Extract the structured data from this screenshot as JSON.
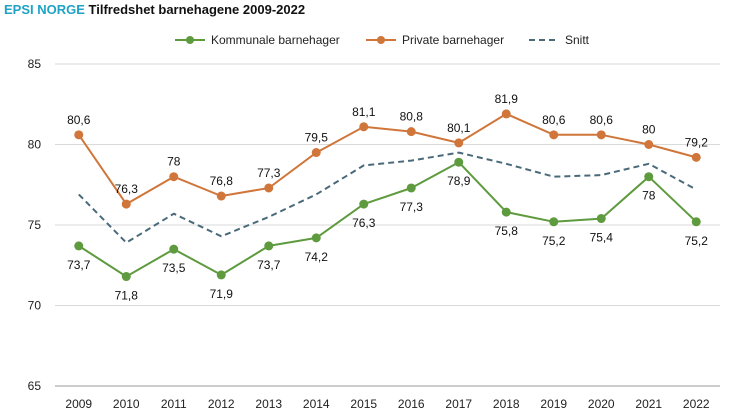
{
  "header": {
    "brand": "EPSI NORGE",
    "title": "Tilfredshet barnehagene 2009-2022"
  },
  "colors": {
    "kommunale": "#5e9a3e",
    "private": "#d0763a",
    "snitt": "#4a6a7a",
    "grid": "#d9d9d9",
    "axis": "#999999",
    "brand": "#1fa3c4"
  },
  "chart_data": {
    "type": "line",
    "title": "Tilfredshet barnehagene 2009-2022",
    "xlabel": "",
    "ylabel": "",
    "ylim": [
      65,
      85
    ],
    "yticks": [
      "65",
      "70",
      "75",
      "80",
      "85"
    ],
    "grid": true,
    "legend_position": "top-center",
    "x": [
      "2009",
      "2010",
      "2011",
      "2012",
      "2013",
      "2014",
      "2015",
      "2016",
      "2017",
      "2018",
      "2019",
      "2020",
      "2021",
      "2022"
    ],
    "series": [
      {
        "name": "Kommunale barnehager",
        "key": "kommunale",
        "style": "solid-marker",
        "label_position": "below",
        "values": [
          73.7,
          71.8,
          73.5,
          71.9,
          73.7,
          74.2,
          76.3,
          77.3,
          78.9,
          75.8,
          75.2,
          75.4,
          78,
          75.2
        ],
        "labels": [
          "73,7",
          "71,8",
          "73,5",
          "71,9",
          "73,7",
          "74,2",
          "76,3",
          "77,3",
          "78,9",
          "75,8",
          "75,2",
          "75,4",
          "78",
          "75,2"
        ]
      },
      {
        "name": "Private barnehager",
        "key": "private",
        "style": "solid-marker",
        "label_position": "above",
        "values": [
          80.6,
          76.3,
          78,
          76.8,
          77.3,
          79.5,
          81.1,
          80.8,
          80.1,
          81.9,
          80.6,
          80.6,
          80,
          79.2
        ],
        "labels": [
          "80,6",
          "76,3",
          "78",
          "76,8",
          "77,3",
          "79,5",
          "81,1",
          "80,8",
          "80,1",
          "81,9",
          "80,6",
          "80,6",
          "80",
          "79,2"
        ]
      },
      {
        "name": "Snitt",
        "key": "snitt",
        "style": "dashed",
        "label_position": "none",
        "values": [
          76.9,
          73.9,
          75.7,
          74.3,
          75.5,
          76.9,
          78.7,
          79.0,
          79.5,
          78.8,
          78.0,
          78.1,
          78.8,
          77.2
        ],
        "labels": []
      }
    ]
  }
}
